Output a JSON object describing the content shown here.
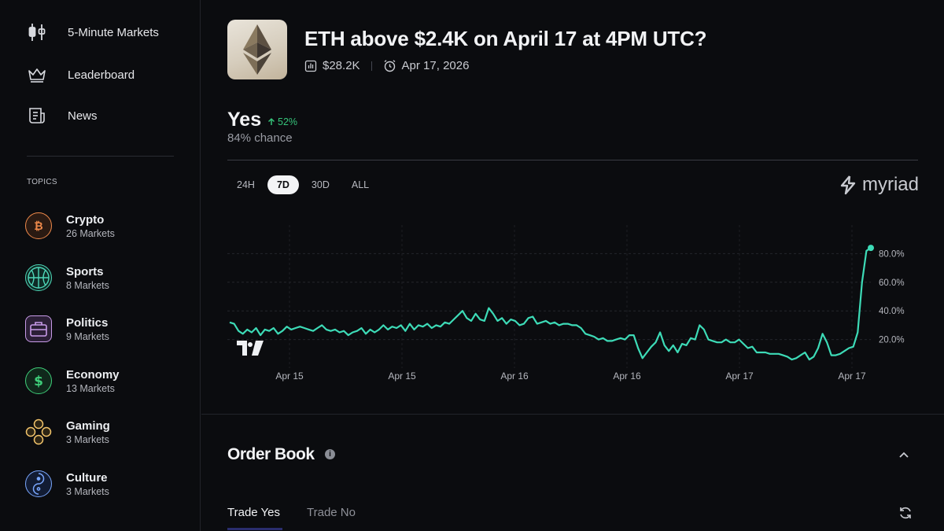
{
  "sidebar": {
    "nav": [
      {
        "label": "5-Minute Markets",
        "icon": "candlestick-icon"
      },
      {
        "label": "Leaderboard",
        "icon": "crown-icon"
      },
      {
        "label": "News",
        "icon": "newspaper-icon"
      }
    ],
    "topics_title": "TOPICS",
    "topics": [
      {
        "name": "Crypto",
        "count": "26 Markets",
        "icon": "bitcoin-icon",
        "color": "#f08a4b"
      },
      {
        "name": "Sports",
        "count": "8 Markets",
        "icon": "basketball-icon",
        "color": "#4ed8b8"
      },
      {
        "name": "Politics",
        "count": "9 Markets",
        "icon": "briefcase-icon",
        "color": "#c89be8"
      },
      {
        "name": "Economy",
        "count": "13 Markets",
        "icon": "dollar-icon",
        "color": "#3fcf7a"
      },
      {
        "name": "Gaming",
        "count": "3 Markets",
        "icon": "gamepad-icon",
        "color": "#f2c46b"
      },
      {
        "name": "Culture",
        "count": "3 Markets",
        "icon": "yin-yang-icon",
        "color": "#7aa8ff"
      }
    ]
  },
  "market": {
    "title": "ETH above $2.4K on April 17 at 4PM UTC?",
    "volume": "$28.2K",
    "date": "Apr 17, 2026"
  },
  "outcome": {
    "label": "Yes",
    "change": "52%",
    "chance": "84% chance"
  },
  "range_tabs": [
    {
      "label": "24H",
      "active": false
    },
    {
      "label": "7D",
      "active": true
    },
    {
      "label": "30D",
      "active": false
    },
    {
      "label": "ALL",
      "active": false
    }
  ],
  "brand": "myriad",
  "colors": {
    "line": "#3ddbb7",
    "up": "#35c47a"
  },
  "chart_data": {
    "type": "line",
    "x_ticks": [
      "Apr 15",
      "Apr 15",
      "Apr 16",
      "Apr 16",
      "Apr 17",
      "Apr 17"
    ],
    "y_ticks": [
      "20.0%",
      "40.0%",
      "60.0%",
      "80.0%"
    ],
    "ylim": [
      0,
      100
    ],
    "grid": true,
    "series": [
      {
        "values": [
          32,
          31,
          26,
          24,
          27,
          25,
          28,
          23,
          27,
          26,
          28,
          24,
          26,
          29,
          27,
          28,
          29,
          28,
          27,
          26,
          28,
          30,
          27,
          26,
          27,
          25,
          26,
          23,
          25,
          26,
          28,
          24,
          27,
          25,
          27,
          30,
          27,
          29,
          28,
          30,
          26,
          31,
          27,
          30,
          29,
          31,
          28,
          30,
          29,
          32,
          31,
          34,
          37,
          40,
          35,
          33,
          38,
          34,
          33,
          42,
          38,
          33,
          35,
          31,
          34,
          33,
          30,
          31,
          35,
          36,
          31,
          32,
          33,
          31,
          32,
          30,
          31,
          31,
          30,
          30,
          28,
          24,
          23,
          22,
          20,
          21,
          19,
          19,
          20,
          21,
          20,
          23,
          23,
          14,
          7,
          11,
          15,
          18,
          25,
          16,
          12,
          16,
          11,
          17,
          16,
          21,
          20,
          30,
          27,
          20,
          19,
          18,
          18,
          20,
          18,
          18,
          20,
          17,
          14,
          15,
          11,
          11,
          11,
          10,
          10,
          10,
          9,
          8,
          6,
          7,
          9,
          11,
          6,
          8,
          14,
          24,
          18,
          9,
          9,
          10,
          12,
          14,
          15,
          25,
          60,
          82,
          84
        ]
      }
    ]
  },
  "order_book": {
    "title": "Order Book",
    "tabs": [
      {
        "label": "Trade Yes",
        "active": true
      },
      {
        "label": "Trade No",
        "active": false
      }
    ]
  }
}
